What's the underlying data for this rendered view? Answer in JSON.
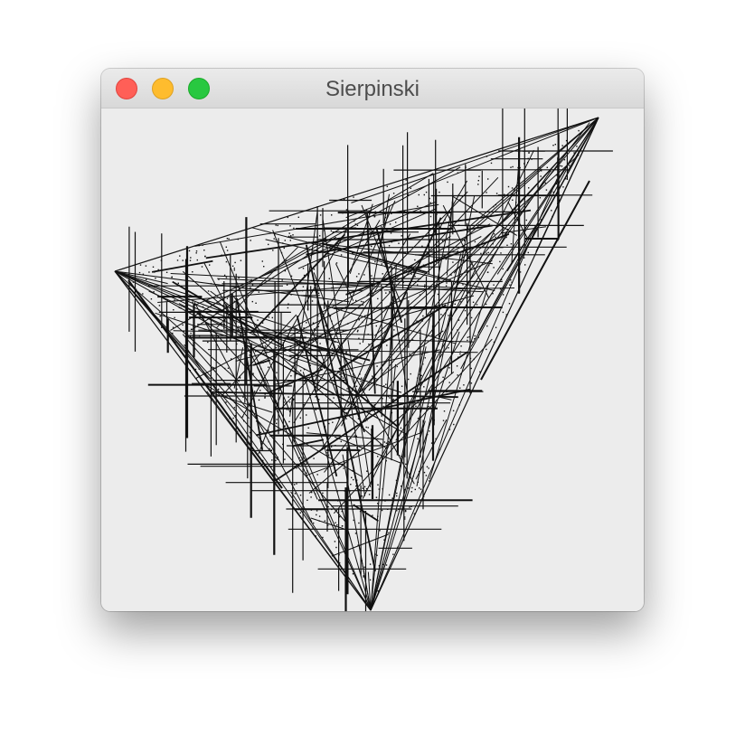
{
  "window": {
    "title": "Sierpinski"
  },
  "controls": {
    "close": "close-button",
    "minimize": "minimize-button",
    "zoom": "zoom-button"
  },
  "colors": {
    "close": "#ff5f57",
    "minimize": "#febc2e",
    "zoom": "#28c840",
    "canvas_background": "#ececec",
    "stroke": "#111111"
  }
}
